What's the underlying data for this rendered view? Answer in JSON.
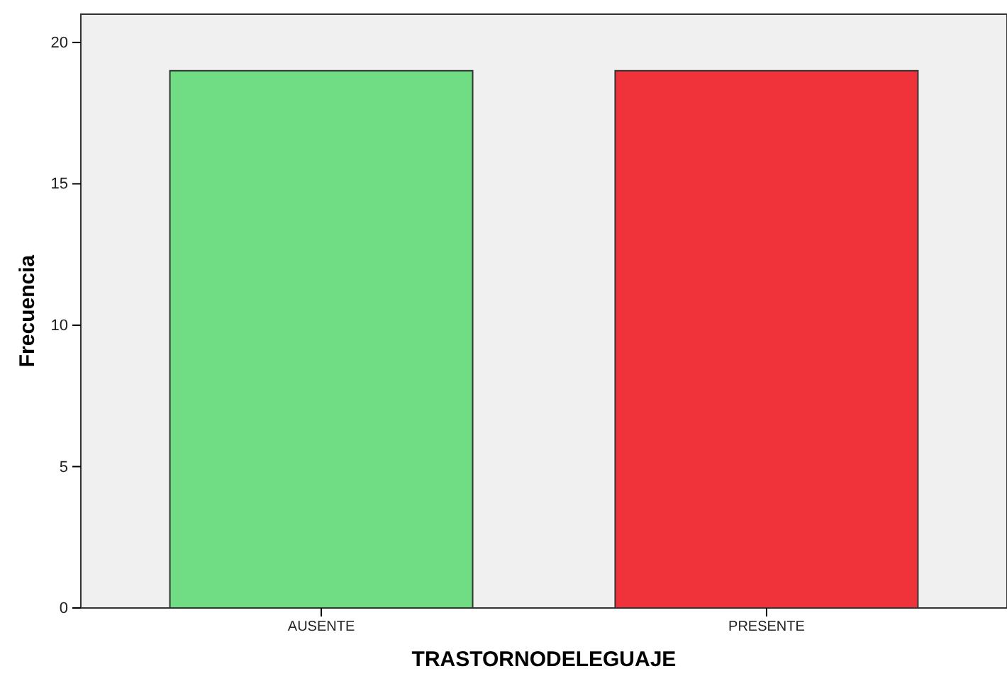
{
  "chart_data": {
    "type": "bar",
    "xlabel": "TRASTORNODELEGUAJE",
    "ylabel": "Frecuencia",
    "categories": [
      "AUSENTE",
      "PRESENTE"
    ],
    "values": [
      19,
      19
    ],
    "colors": [
      "#70dc84",
      "#f0323a"
    ],
    "ylim": [
      0,
      21
    ],
    "yticks": [
      0,
      5,
      10,
      15,
      20
    ],
    "grid": false
  }
}
